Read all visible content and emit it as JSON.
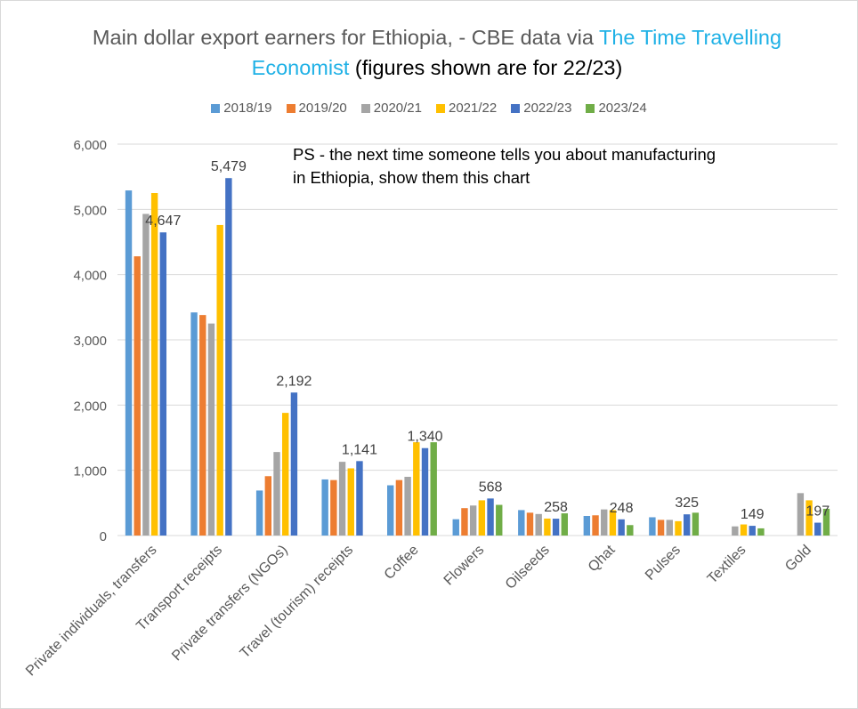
{
  "title": {
    "main": "Main dollar export earners for Ethiopia,  - CBE data via ",
    "link": "The Time Travelling Economist",
    "tail": " (figures shown are for 22/23)"
  },
  "annotation": {
    "line1": "PS - the next time someone tells you about manufacturing",
    "line2": "in Ethiopia, show them this chart"
  },
  "colors": {
    "link": "#1fb1e6",
    "grid": "#d9d9d9",
    "axis_text": "#595959"
  },
  "chart_data": {
    "type": "bar",
    "title": "Main dollar export earners for Ethiopia,  - CBE data via The Time Travelling Economist (figures shown are for 22/23)",
    "xlabel": "",
    "ylabel": "",
    "ylim": [
      0,
      6000
    ],
    "yticks": [
      "0",
      "1,000",
      "2,000",
      "3,000",
      "4,000",
      "5,000",
      "6,000"
    ],
    "grid": true,
    "legend_position": "top",
    "categories": [
      "Private individuals, transfers",
      "Transport receipts",
      "Private transfers (NGOs)",
      "Travel (tourism) receipts",
      "Coffee",
      "Flowers",
      "Oilseeds",
      "Qhat",
      "Pulses",
      "Textiles",
      "Gold"
    ],
    "series": [
      {
        "name": "2018/19",
        "color": "#5b9bd5",
        "values": [
          5290,
          3420,
          690,
          860,
          770,
          250,
          390,
          300,
          280,
          null,
          null
        ]
      },
      {
        "name": "2019/20",
        "color": "#ed7d31",
        "values": [
          4280,
          3380,
          910,
          850,
          850,
          420,
          350,
          310,
          240,
          null,
          null
        ]
      },
      {
        "name": "2020/21",
        "color": "#a5a5a5",
        "values": [
          4930,
          3250,
          1280,
          1130,
          900,
          460,
          330,
          400,
          240,
          140,
          650
        ]
      },
      {
        "name": "2021/22",
        "color": "#ffc000",
        "values": [
          5250,
          4760,
          1880,
          1030,
          1430,
          540,
          260,
          390,
          220,
          170,
          540
        ]
      },
      {
        "name": "2022/23",
        "color": "#4472c4",
        "values": [
          4647,
          5479,
          2192,
          1141,
          1340,
          568,
          258,
          248,
          325,
          149,
          197
        ]
      },
      {
        "name": "2023/24",
        "color": "#70ad47",
        "values": [
          null,
          null,
          null,
          null,
          1430,
          470,
          340,
          160,
          350,
          110,
          410
        ]
      }
    ],
    "data_labels": {
      "series": "2022/23",
      "labels": [
        "4,647",
        "5,479",
        "2,192",
        "1,141",
        "1,340",
        "568",
        "258",
        "248",
        "325",
        "149",
        "197"
      ]
    }
  }
}
